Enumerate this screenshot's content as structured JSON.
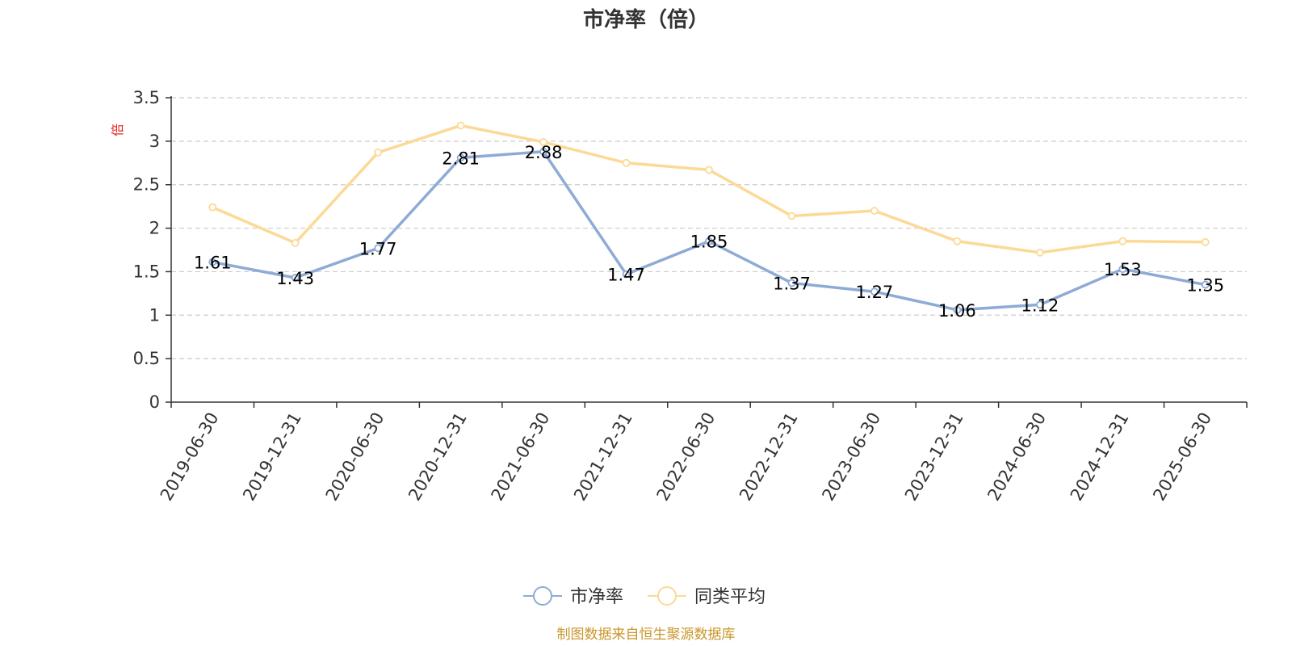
{
  "chart_data": {
    "type": "line",
    "title": "市净率（倍）",
    "ylabel": "倍",
    "xlabel": "",
    "categories": [
      "2019-06-30",
      "2019-12-31",
      "2020-06-30",
      "2020-12-31",
      "2021-06-30",
      "2021-12-31",
      "2022-06-30",
      "2022-12-31",
      "2023-06-30",
      "2023-12-31",
      "2024-06-30",
      "2024-12-31",
      "2025-06-30"
    ],
    "yticks": [
      "0",
      "0.5",
      "1",
      "1.5",
      "2",
      "2.5",
      "3",
      "3.5"
    ],
    "ylim": [
      0,
      3.5
    ],
    "grid": true,
    "legend_position": "bottom",
    "series": [
      {
        "name": "市净率",
        "color": "#8eabd6",
        "values": [
          1.61,
          1.43,
          1.77,
          2.81,
          2.88,
          1.47,
          1.85,
          1.37,
          1.27,
          1.06,
          1.12,
          1.53,
          1.35
        ],
        "labels": [
          "1.61",
          "1.43",
          "1.77",
          "2.81",
          "2.88",
          "1.47",
          "1.85",
          "1.37",
          "1.27",
          "1.06",
          "1.12",
          "1.53",
          "1.35"
        ]
      },
      {
        "name": "同类平均",
        "color": "#fcd996",
        "values": [
          2.24,
          1.83,
          2.87,
          3.18,
          2.99,
          2.75,
          2.67,
          2.14,
          2.2,
          1.85,
          1.72,
          1.85,
          1.84
        ]
      }
    ],
    "unit_color": "#e8231f",
    "source": "制图数据来自恒生聚源数据库",
    "source_color": "#c9962a"
  }
}
